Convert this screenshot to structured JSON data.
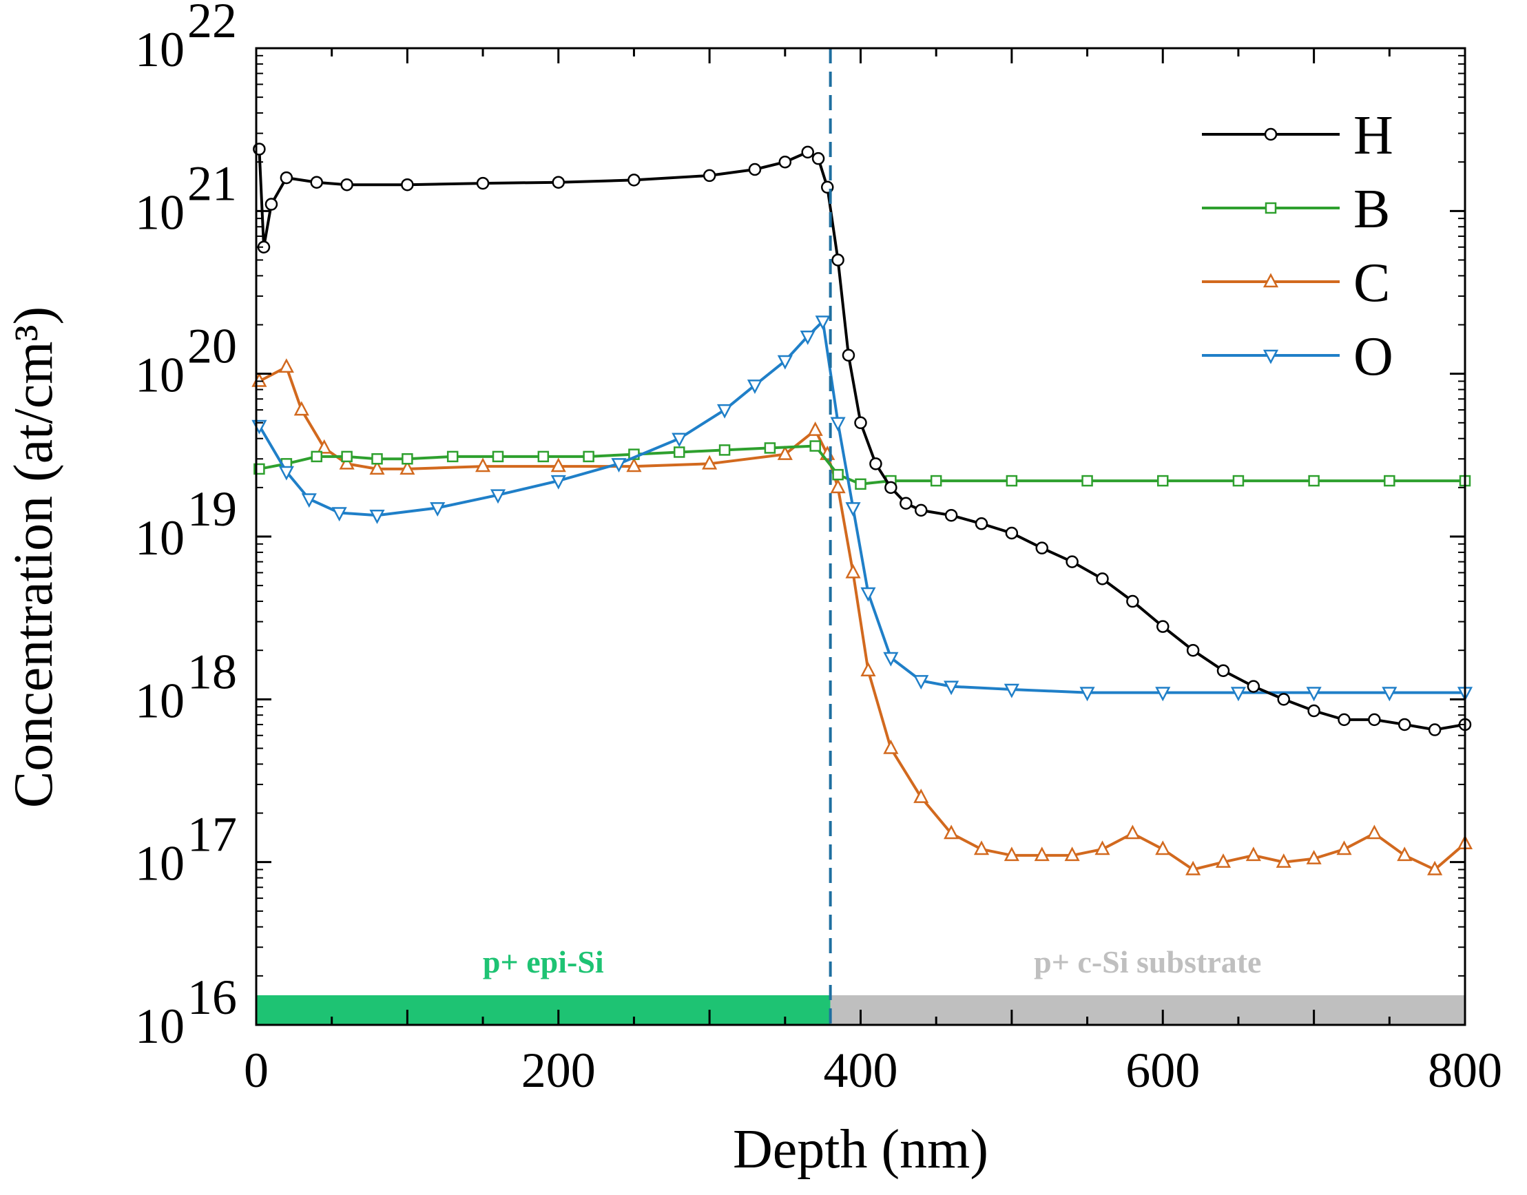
{
  "chart_data": {
    "type": "line",
    "xlabel": "Depth (nm)",
    "ylabel": "Concentration (at/cm³)",
    "xlim": [
      0,
      800
    ],
    "ylim": [
      1e+16,
      1e+22
    ],
    "y_scale": "log",
    "x_ticks": [
      0,
      200,
      400,
      600,
      800
    ],
    "x_tick_labels": [
      "0",
      "200",
      "400",
      "600",
      "800"
    ],
    "y_tick_exponents": [
      "16",
      "17",
      "18",
      "19",
      "20",
      "21",
      "22"
    ],
    "y_tick_base": "10",
    "interface_depth": 380,
    "regions": [
      {
        "label": "p+ epi-Si",
        "x_start": 0,
        "x_end": 380,
        "color": "#1ec373"
      },
      {
        "label": "p+ c-Si substrate",
        "x_start": 380,
        "x_end": 800,
        "color": "#bfbfbf"
      }
    ],
    "legend_position": "top-right",
    "series": [
      {
        "name": "H",
        "color": "#000000",
        "marker": "circle",
        "x": [
          2,
          5,
          10,
          20,
          40,
          60,
          100,
          150,
          200,
          250,
          300,
          330,
          350,
          365,
          372,
          378,
          385,
          392,
          400,
          410,
          420,
          430,
          440,
          460,
          480,
          500,
          520,
          540,
          560,
          580,
          600,
          620,
          640,
          660,
          680,
          700,
          720,
          740,
          760,
          780,
          800
        ],
        "y": [
          2.4e+21,
          6e+20,
          1.1e+21,
          1.6e+21,
          1.5e+21,
          1.45e+21,
          1.45e+21,
          1.48e+21,
          1.5e+21,
          1.55e+21,
          1.65e+21,
          1.8e+21,
          2e+21,
          2.3e+21,
          2.1e+21,
          1.4e+21,
          5e+20,
          1.3e+20,
          5e+19,
          2.8e+19,
          2e+19,
          1.6e+19,
          1.45e+19,
          1.35e+19,
          1.2e+19,
          1.05e+19,
          8.5e+18,
          7e+18,
          5.5e+18,
          4e+18,
          2.8e+18,
          2e+18,
          1.5e+18,
          1.2e+18,
          1e+18,
          8.5e+17,
          7.5e+17,
          7.5e+17,
          7e+17,
          6.5e+17,
          7e+17
        ]
      },
      {
        "name": "B",
        "color": "#2ea02e",
        "marker": "square",
        "x": [
          2,
          20,
          40,
          60,
          80,
          100,
          130,
          160,
          190,
          220,
          250,
          280,
          310,
          340,
          370,
          385,
          400,
          420,
          450,
          500,
          550,
          600,
          650,
          700,
          750,
          800
        ],
        "y": [
          2.6e+19,
          2.8e+19,
          3.1e+19,
          3.1e+19,
          3e+19,
          3e+19,
          3.1e+19,
          3.1e+19,
          3.1e+19,
          3.1e+19,
          3.2e+19,
          3.3e+19,
          3.4e+19,
          3.5e+19,
          3.6e+19,
          2.4e+19,
          2.1e+19,
          2.2e+19,
          2.2e+19,
          2.2e+19,
          2.2e+19,
          2.2e+19,
          2.2e+19,
          2.2e+19,
          2.2e+19,
          2.2e+19
        ]
      },
      {
        "name": "C",
        "color": "#d2691e",
        "marker": "triangle-up",
        "x": [
          2,
          20,
          30,
          45,
          60,
          80,
          100,
          150,
          200,
          250,
          300,
          350,
          370,
          378,
          385,
          395,
          405,
          420,
          440,
          460,
          480,
          500,
          520,
          540,
          560,
          580,
          600,
          620,
          640,
          660,
          680,
          700,
          720,
          740,
          760,
          780,
          800
        ],
        "y": [
          9e+19,
          1.1e+20,
          6e+19,
          3.5e+19,
          2.8e+19,
          2.6e+19,
          2.6e+19,
          2.7e+19,
          2.7e+19,
          2.7e+19,
          2.8e+19,
          3.2e+19,
          4.5e+19,
          3.2e+19,
          2e+19,
          6e+18,
          1.5e+18,
          5e+17,
          2.5e+17,
          1.5e+17,
          1.2e+17,
          1.1e+17,
          1.1e+17,
          1.1e+17,
          1.2e+17,
          1.5e+17,
          1.2e+17,
          9e+16,
          1e+17,
          1.1e+17,
          1e+17,
          1.05e+17,
          1.2e+17,
          1.5e+17,
          1.1e+17,
          9e+16,
          1.3e+17
        ]
      },
      {
        "name": "O",
        "color": "#1f7fc8",
        "marker": "triangle-down",
        "x": [
          2,
          20,
          35,
          55,
          80,
          120,
          160,
          200,
          240,
          280,
          310,
          330,
          350,
          365,
          375,
          385,
          395,
          405,
          420,
          440,
          460,
          500,
          550,
          600,
          650,
          700,
          750,
          800
        ],
        "y": [
          4.8e+19,
          2.5e+19,
          1.7e+19,
          1.4e+19,
          1.35e+19,
          1.5e+19,
          1.8e+19,
          2.2e+19,
          2.8e+19,
          4e+19,
          6e+19,
          8.5e+19,
          1.2e+20,
          1.7e+20,
          2.1e+20,
          5e+19,
          1.5e+19,
          4.5e+18,
          1.8e+18,
          1.3e+18,
          1.2e+18,
          1.15e+18,
          1.1e+18,
          1.1e+18,
          1.1e+18,
          1.1e+18,
          1.1e+18,
          1.1e+18
        ]
      }
    ]
  }
}
